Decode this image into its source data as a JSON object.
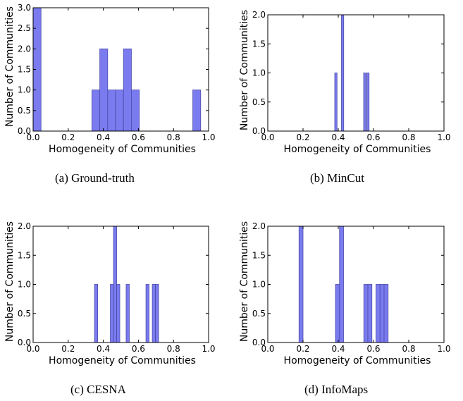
{
  "charts": [
    {
      "caption": "(a)  Ground-truth",
      "chart_data": {
        "type": "bar",
        "xlabel": "Homogeneity of Communities",
        "ylabel": "Number of Communities",
        "xlim": [
          0.0,
          1.0
        ],
        "ylim": [
          0.0,
          3.0
        ],
        "xticks": [
          "0.0",
          "0.2",
          "0.4",
          "0.6",
          "0.8",
          "1.0"
        ],
        "yticks": [
          "0.0",
          "0.5",
          "1.0",
          "1.5",
          "2.0",
          "2.5",
          "3.0"
        ],
        "bars": [
          {
            "x0": 0.0,
            "x1": 0.045,
            "value": 3
          },
          {
            "x0": 0.335,
            "x1": 0.38,
            "value": 1
          },
          {
            "x0": 0.38,
            "x1": 0.425,
            "value": 2
          },
          {
            "x0": 0.425,
            "x1": 0.47,
            "value": 1
          },
          {
            "x0": 0.47,
            "x1": 0.515,
            "value": 1
          },
          {
            "x0": 0.515,
            "x1": 0.56,
            "value": 2
          },
          {
            "x0": 0.56,
            "x1": 0.605,
            "value": 1
          },
          {
            "x0": 0.91,
            "x1": 0.955,
            "value": 1
          }
        ]
      }
    },
    {
      "caption": "(b)  MinCut",
      "chart_data": {
        "type": "bar",
        "xlabel": "Homogeneity of Communities",
        "ylabel": "Number of Communities",
        "xlim": [
          0.0,
          1.0
        ],
        "ylim": [
          0.0,
          2.0
        ],
        "xticks": [
          "0.0",
          "0.2",
          "0.4",
          "0.6",
          "0.8",
          "1.0"
        ],
        "yticks": [
          "0.0",
          "0.5",
          "1.0",
          "1.5",
          "2.0"
        ],
        "bars": [
          {
            "x0": 0.38,
            "x1": 0.393,
            "value": 1
          },
          {
            "x0": 0.418,
            "x1": 0.431,
            "value": 2
          },
          {
            "x0": 0.544,
            "x1": 0.557,
            "value": 1
          },
          {
            "x0": 0.562,
            "x1": 0.575,
            "value": 1
          }
        ]
      }
    },
    {
      "caption": "(c)  CESNA",
      "chart_data": {
        "type": "bar",
        "xlabel": "Homogeneity of Communities",
        "ylabel": "Number of Communities",
        "xlim": [
          0.0,
          1.0
        ],
        "ylim": [
          0.0,
          2.0
        ],
        "xticks": [
          "0.0",
          "0.2",
          "0.4",
          "0.6",
          "0.8",
          "1.0"
        ],
        "yticks": [
          "0.0",
          "0.5",
          "1.0",
          "1.5",
          "2.0"
        ],
        "bars": [
          {
            "x0": 0.35,
            "x1": 0.368,
            "value": 1
          },
          {
            "x0": 0.44,
            "x1": 0.458,
            "value": 1
          },
          {
            "x0": 0.458,
            "x1": 0.476,
            "value": 2
          },
          {
            "x0": 0.476,
            "x1": 0.494,
            "value": 1
          },
          {
            "x0": 0.53,
            "x1": 0.548,
            "value": 1
          },
          {
            "x0": 0.643,
            "x1": 0.661,
            "value": 1
          },
          {
            "x0": 0.679,
            "x1": 0.697,
            "value": 1
          },
          {
            "x0": 0.697,
            "x1": 0.715,
            "value": 1
          }
        ]
      }
    },
    {
      "caption": "(d)  InfoMaps",
      "chart_data": {
        "type": "bar",
        "xlabel": "Homogeneity of Communities",
        "ylabel": "Number of Communities",
        "xlim": [
          0.0,
          1.0
        ],
        "ylim": [
          0.0,
          2.0
        ],
        "xticks": [
          "0.0",
          "0.2",
          "0.4",
          "0.6",
          "0.8",
          "1.0"
        ],
        "yticks": [
          "0.0",
          "0.5",
          "1.0",
          "1.5",
          "2.0"
        ],
        "bars": [
          {
            "x0": 0.177,
            "x1": 0.2,
            "value": 2
          },
          {
            "x0": 0.384,
            "x1": 0.407,
            "value": 1
          },
          {
            "x0": 0.407,
            "x1": 0.43,
            "value": 2
          },
          {
            "x0": 0.545,
            "x1": 0.568,
            "value": 1
          },
          {
            "x0": 0.568,
            "x1": 0.591,
            "value": 1
          },
          {
            "x0": 0.614,
            "x1": 0.637,
            "value": 1
          },
          {
            "x0": 0.637,
            "x1": 0.66,
            "value": 1
          },
          {
            "x0": 0.66,
            "x1": 0.683,
            "value": 1
          }
        ]
      }
    }
  ],
  "style": {
    "bar_fill": "#7b7bf0",
    "bar_stroke": "#4a4aa8",
    "axis_color": "#000000"
  }
}
